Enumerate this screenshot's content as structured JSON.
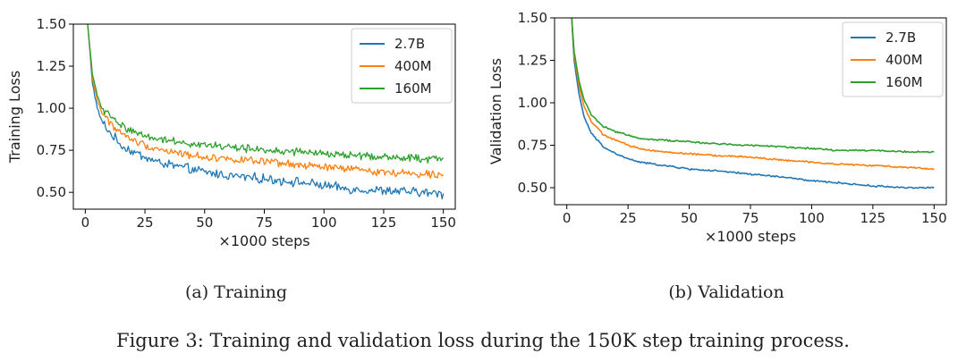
{
  "colors": {
    "2.7B": "#1f77b4",
    "400M": "#ff7f0e",
    "160M": "#2ca02c"
  },
  "figure_caption": "Figure 3: Training and validation loss during the 150K step training process.",
  "chart_data": [
    {
      "type": "line",
      "id": "training",
      "subcaption": "(a) Training",
      "title": "",
      "xlabel": "×1000 steps",
      "ylabel": "Training Loss",
      "xlim": [
        -5,
        155
      ],
      "ylim": [
        0.4,
        1.5
      ],
      "xticks": [
        0,
        25,
        50,
        75,
        100,
        125,
        150
      ],
      "yticks": [
        0.5,
        0.75,
        1.0,
        1.25,
        1.5
      ],
      "ytick_labels": [
        "0.50",
        "0.75",
        "1.00",
        "1.25",
        "1.50"
      ],
      "legend": "top-right",
      "grid": false,
      "series": [
        {
          "name": "2.7B",
          "color": "#1f77b4",
          "noise": 0.022,
          "x": [
            1,
            3,
            5,
            7,
            10,
            15,
            20,
            25,
            30,
            40,
            50,
            60,
            75,
            90,
            100,
            110,
            125,
            140,
            150
          ],
          "values": [
            1.5,
            1.15,
            1.0,
            0.92,
            0.86,
            0.78,
            0.74,
            0.71,
            0.68,
            0.65,
            0.62,
            0.6,
            0.58,
            0.56,
            0.54,
            0.52,
            0.51,
            0.5,
            0.49
          ]
        },
        {
          "name": "400M",
          "color": "#ff7f0e",
          "noise": 0.018,
          "x": [
            1,
            3,
            5,
            7,
            10,
            15,
            20,
            25,
            30,
            40,
            50,
            60,
            75,
            90,
            100,
            110,
            125,
            140,
            150
          ],
          "values": [
            1.5,
            1.18,
            1.05,
            0.97,
            0.92,
            0.85,
            0.81,
            0.78,
            0.76,
            0.73,
            0.71,
            0.7,
            0.68,
            0.66,
            0.65,
            0.64,
            0.62,
            0.61,
            0.61
          ]
        },
        {
          "name": "160M",
          "color": "#2ca02c",
          "noise": 0.018,
          "x": [
            1,
            3,
            5,
            7,
            10,
            15,
            20,
            25,
            30,
            40,
            50,
            60,
            75,
            90,
            100,
            110,
            125,
            140,
            150
          ],
          "values": [
            1.5,
            1.2,
            1.08,
            1.0,
            0.96,
            0.9,
            0.86,
            0.84,
            0.82,
            0.8,
            0.78,
            0.77,
            0.75,
            0.74,
            0.73,
            0.72,
            0.71,
            0.7,
            0.7
          ]
        }
      ]
    },
    {
      "type": "line",
      "id": "validation",
      "subcaption": "(b) Validation",
      "title": "",
      "xlabel": "×1000 steps",
      "ylabel": "Validation Loss",
      "xlim": [
        -5,
        155
      ],
      "ylim": [
        0.4,
        1.5
      ],
      "xticks": [
        0,
        25,
        50,
        75,
        100,
        125,
        150
      ],
      "yticks": [
        0.5,
        0.75,
        1.0,
        1.25,
        1.5
      ],
      "ytick_labels": [
        "0.50",
        "0.75",
        "1.00",
        "1.25",
        "1.50"
      ],
      "legend": "top-right",
      "grid": false,
      "series": [
        {
          "name": "2.7B",
          "color": "#1f77b4",
          "noise": 0.004,
          "x": [
            2,
            3,
            5,
            7,
            10,
            15,
            20,
            25,
            30,
            40,
            50,
            60,
            75,
            90,
            100,
            110,
            125,
            140,
            150
          ],
          "values": [
            1.5,
            1.25,
            1.05,
            0.92,
            0.82,
            0.74,
            0.7,
            0.67,
            0.65,
            0.63,
            0.61,
            0.6,
            0.58,
            0.56,
            0.54,
            0.53,
            0.51,
            0.5,
            0.5
          ]
        },
        {
          "name": "400M",
          "color": "#ff7f0e",
          "noise": 0.004,
          "x": [
            2,
            3,
            5,
            7,
            10,
            15,
            20,
            25,
            30,
            40,
            50,
            60,
            75,
            90,
            100,
            110,
            125,
            140,
            150
          ],
          "values": [
            1.5,
            1.28,
            1.1,
            0.98,
            0.89,
            0.81,
            0.78,
            0.75,
            0.73,
            0.71,
            0.7,
            0.69,
            0.68,
            0.66,
            0.65,
            0.64,
            0.63,
            0.62,
            0.61
          ]
        },
        {
          "name": "160M",
          "color": "#2ca02c",
          "noise": 0.004,
          "x": [
            2,
            3,
            5,
            7,
            10,
            15,
            20,
            25,
            30,
            40,
            50,
            60,
            75,
            90,
            100,
            110,
            125,
            140,
            150
          ],
          "values": [
            1.5,
            1.3,
            1.13,
            1.02,
            0.93,
            0.86,
            0.83,
            0.81,
            0.79,
            0.78,
            0.77,
            0.76,
            0.75,
            0.74,
            0.73,
            0.72,
            0.72,
            0.71,
            0.71
          ]
        }
      ]
    }
  ]
}
